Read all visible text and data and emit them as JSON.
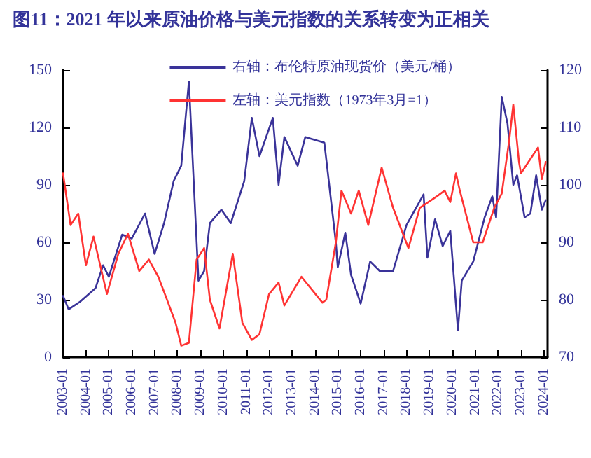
{
  "chart_data": {
    "type": "line",
    "title": "图11：2021 年以来原油价格与美元指数的关系转变为正相关",
    "xlim": [
      "2003-01",
      "2024-03"
    ],
    "xticks": [
      "2003-01",
      "2004-01",
      "2005-01",
      "2006-01",
      "2007-01",
      "2008-01",
      "2009-01",
      "2010-01",
      "2011-01",
      "2012-01",
      "2013-01",
      "2014-01",
      "2015-01",
      "2016-01",
      "2017-01",
      "2018-01",
      "2019-01",
      "2020-01",
      "2021-01",
      "2022-01",
      "2023-01",
      "2024-01"
    ],
    "ylim": [
      0,
      150
    ],
    "yticks": [
      0,
      30,
      60,
      90,
      120,
      150
    ],
    "y2lim": [
      70,
      120
    ],
    "y2ticks": [
      70,
      80,
      90,
      100,
      110,
      120
    ],
    "grid": false,
    "legend": "top right",
    "marker": "none",
    "line_style": "solid",
    "series": [
      {
        "name": "右轴：布伦特原油现货价（美元/桶）",
        "color": "#3a3399",
        "x": [
          "2003-01",
          "2003-04",
          "2003-10",
          "2004-06",
          "2004-10",
          "2005-01",
          "2005-08",
          "2006-01",
          "2006-08",
          "2007-01",
          "2007-06",
          "2007-11",
          "2008-03",
          "2008-07",
          "2008-12",
          "2009-03",
          "2009-06",
          "2009-12",
          "2010-05",
          "2010-12",
          "2011-04",
          "2011-08",
          "2012-03",
          "2012-06",
          "2012-09",
          "2013-04",
          "2013-08",
          "2014-06",
          "2014-12",
          "2015-01",
          "2015-05",
          "2015-08",
          "2016-01",
          "2016-06",
          "2016-11",
          "2017-06",
          "2018-01",
          "2018-10",
          "2018-12",
          "2019-04",
          "2019-08",
          "2019-12",
          "2020-04",
          "2020-06",
          "2020-12",
          "2021-06",
          "2021-10",
          "2021-12",
          "2022-03",
          "2022-06",
          "2022-09",
          "2022-11",
          "2023-03",
          "2023-06",
          "2023-09",
          "2023-12",
          "2024-02"
        ],
        "values": [
          32,
          25,
          29,
          36,
          48,
          42,
          64,
          62,
          75,
          54,
          70,
          92,
          100,
          144,
          40,
          45,
          70,
          77,
          70,
          92,
          125,
          105,
          125,
          90,
          115,
          100,
          115,
          112,
          60,
          47,
          65,
          43,
          28,
          50,
          45,
          45,
          69,
          85,
          52,
          72,
          58,
          66,
          14,
          40,
          50,
          73,
          84,
          73,
          136,
          122,
          90,
          95,
          73,
          75,
          95,
          77,
          82
        ]
      },
      {
        "name": "左轴：美元指数（1973年3月=1）",
        "color": "#ff3333",
        "axis": "y2",
        "x": [
          "2003-01",
          "2003-05",
          "2003-09",
          "2004-01",
          "2004-05",
          "2004-12",
          "2005-06",
          "2005-11",
          "2006-05",
          "2006-10",
          "2007-03",
          "2007-07",
          "2007-12",
          "2008-03",
          "2008-07",
          "2008-11",
          "2009-03",
          "2009-06",
          "2009-11",
          "2010-06",
          "2010-11",
          "2011-04",
          "2011-08",
          "2012-01",
          "2012-06",
          "2012-09",
          "2013-06",
          "2014-05",
          "2014-07",
          "2014-12",
          "2015-03",
          "2015-08",
          "2015-12",
          "2016-05",
          "2016-12",
          "2017-06",
          "2018-02",
          "2018-08",
          "2019-05",
          "2019-09",
          "2019-12",
          "2020-03",
          "2020-05",
          "2020-12",
          "2021-05",
          "2021-11",
          "2022-03",
          "2022-07",
          "2022-09",
          "2022-12",
          "2023-01",
          "2023-05",
          "2023-10",
          "2023-12",
          "2024-02"
        ],
        "values": [
          102,
          93,
          95,
          86,
          91,
          81,
          88,
          91.5,
          85,
          87,
          84,
          80.5,
          76,
          72,
          72.5,
          87,
          89,
          80,
          75,
          88,
          76,
          73,
          74,
          81,
          83,
          79,
          84,
          79.5,
          80,
          90,
          99,
          95,
          99,
          93,
          103,
          96,
          89,
          96,
          98,
          99,
          97,
          102,
          99,
          90,
          90,
          96,
          98.5,
          108,
          114,
          104,
          102,
          104,
          106.5,
          101,
          104
        ]
      }
    ]
  }
}
